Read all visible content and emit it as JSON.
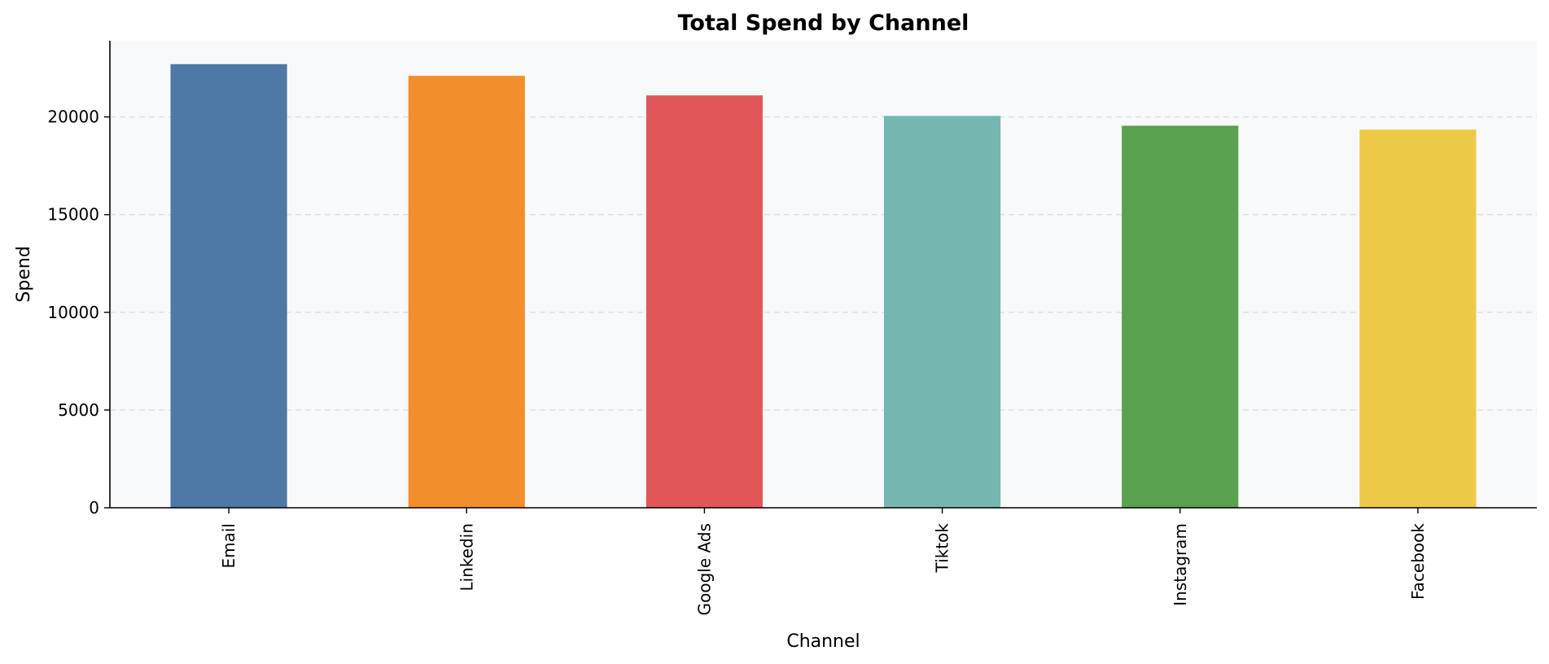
{
  "chart_data": {
    "type": "bar",
    "title": "Total Spend by Channel",
    "xlabel": "Channel",
    "ylabel": "Spend",
    "categories": [
      "Email",
      "Linkedin",
      "Google Ads",
      "Tiktok",
      "Instagram",
      "Facebook"
    ],
    "values": [
      22700,
      22100,
      21100,
      20050,
      19550,
      19350
    ],
    "colors": [
      "#4e79a7",
      "#f28e2b",
      "#e15759",
      "#76b7b2",
      "#59a14f",
      "#edc948"
    ],
    "ylim": [
      0,
      23900
    ],
    "yticks": [
      0,
      5000,
      10000,
      15000,
      20000
    ],
    "ytick_labels": [
      "0",
      "5000",
      "10000",
      "15000",
      "20000"
    ],
    "grid": "y-dashed",
    "legend": "none",
    "background": "#f8f9fb",
    "grid_color": "#d5dbe0"
  }
}
